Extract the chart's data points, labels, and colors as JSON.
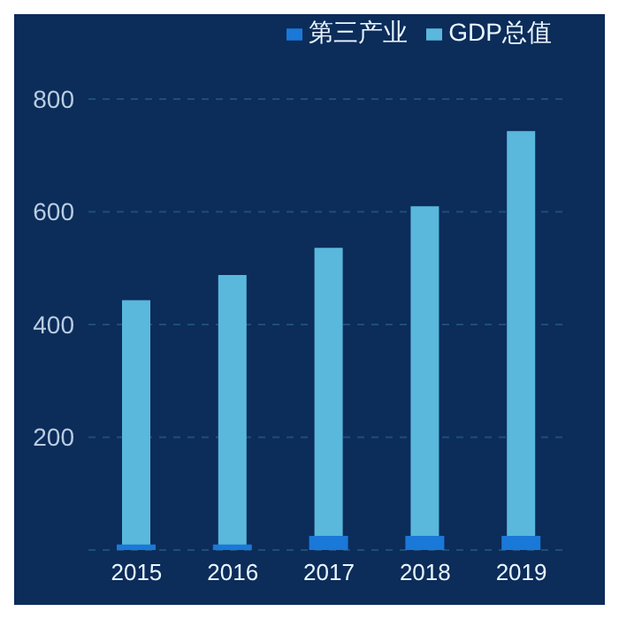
{
  "chart_data": {
    "type": "bar",
    "categories": [
      "2015",
      "2016",
      "2017",
      "2018",
      "2019"
    ],
    "series": [
      {
        "name": "第三产业",
        "color": "#1a78d8",
        "values": [
          10,
          10,
          25,
          25,
          25
        ]
      },
      {
        "name": "GDP总值",
        "color": "#5ab8dc",
        "values": [
          443,
          488,
          536,
          610,
          743
        ]
      }
    ],
    "ylim": [
      0,
      800
    ],
    "yticks": [
      {
        "value": 0,
        "label": null
      },
      200,
      400,
      600,
      800
    ],
    "grid": "y",
    "legend": "top right"
  }
}
